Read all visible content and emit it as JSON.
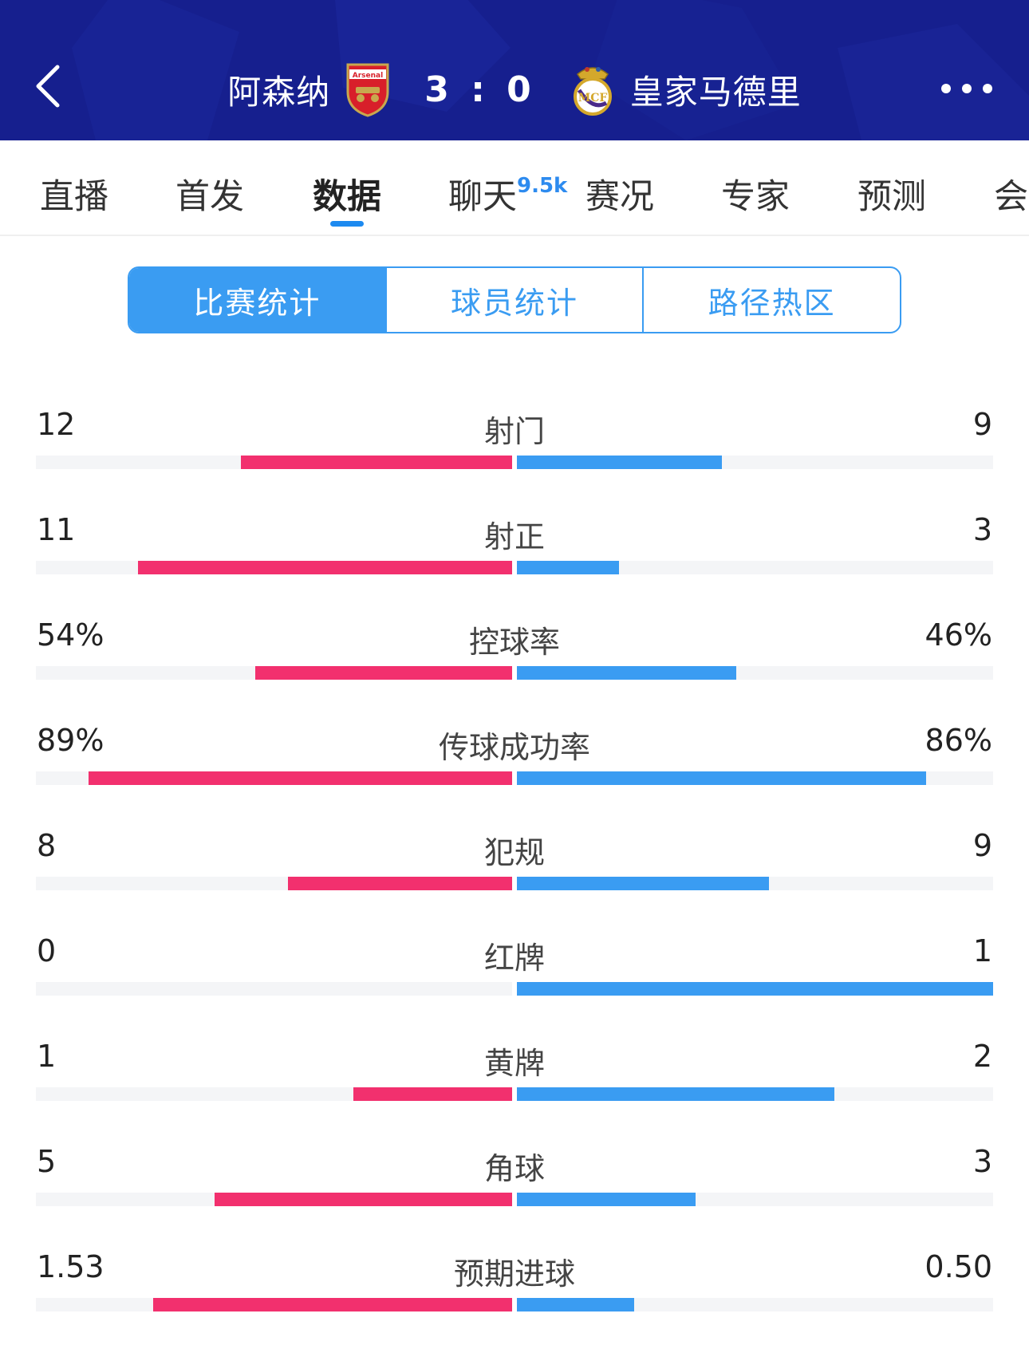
{
  "header": {
    "home_team": "阿森纳",
    "away_team": "皇家马德里",
    "score": "3 : 0",
    "home_crest_text": "Arsenal",
    "background_color": "#161f8e"
  },
  "tabs": [
    {
      "label": "直播"
    },
    {
      "label": "首发"
    },
    {
      "label": "数据",
      "active": true
    },
    {
      "label": "聊天",
      "badge": "9.5k"
    },
    {
      "label": "赛况"
    },
    {
      "label": "专家"
    },
    {
      "label": "预测"
    },
    {
      "label": "会"
    }
  ],
  "segments": [
    {
      "label": "比赛统计",
      "active": true
    },
    {
      "label": "球员统计"
    },
    {
      "label": "路径热区"
    }
  ],
  "colors": {
    "home": "#f2306e",
    "away": "#3a9cf2",
    "accent": "#1d8af0"
  },
  "stats": [
    {
      "label": "射门",
      "home": "12",
      "away": "9",
      "home_ratio": 0.57,
      "away_ratio": 0.43
    },
    {
      "label": "射正",
      "home": "11",
      "away": "3",
      "home_ratio": 0.786,
      "away_ratio": 0.214
    },
    {
      "label": "控球率",
      "home": "54%",
      "away": "46%",
      "home_ratio": 0.54,
      "away_ratio": 0.46
    },
    {
      "label": "传球成功率",
      "home": "89%",
      "away": "86%",
      "home_ratio": 0.89,
      "away_ratio": 0.86
    },
    {
      "label": "犯规",
      "home": "8",
      "away": "9",
      "home_ratio": 0.47,
      "away_ratio": 0.53
    },
    {
      "label": "红牌",
      "home": "0",
      "away": "1",
      "home_ratio": 0.0,
      "away_ratio": 1.0
    },
    {
      "label": "黄牌",
      "home": "1",
      "away": "2",
      "home_ratio": 0.333,
      "away_ratio": 0.667
    },
    {
      "label": "角球",
      "home": "5",
      "away": "3",
      "home_ratio": 0.625,
      "away_ratio": 0.375
    },
    {
      "label": "预期进球",
      "home": "1.53",
      "away": "0.50",
      "home_ratio": 0.754,
      "away_ratio": 0.246
    }
  ]
}
